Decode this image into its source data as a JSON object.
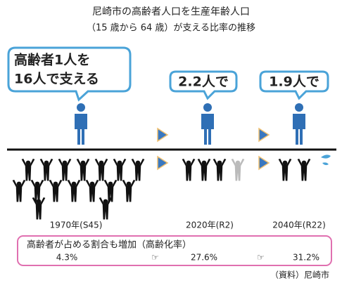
{
  "header": {
    "title": "尼崎市の高齢者人口を生産年齢人口",
    "subtitle": "（15 歳から 64 歳）が支える比率の推移"
  },
  "bubbles": [
    {
      "lines": [
        "高齢者1人を",
        "16人で支える"
      ]
    },
    {
      "lines": [
        "2.2人で"
      ]
    },
    {
      "lines": [
        "1.9人で"
      ]
    }
  ],
  "years": [
    "1970年(S45)",
    "2020年(R2)",
    "2040年(R22)"
  ],
  "aging_box": {
    "label": "高齢者が占める割合も増加（高齢化率）",
    "rates": [
      "4.3%",
      "27.6%",
      "31.2%"
    ]
  },
  "source": "（資料）尼崎市"
}
